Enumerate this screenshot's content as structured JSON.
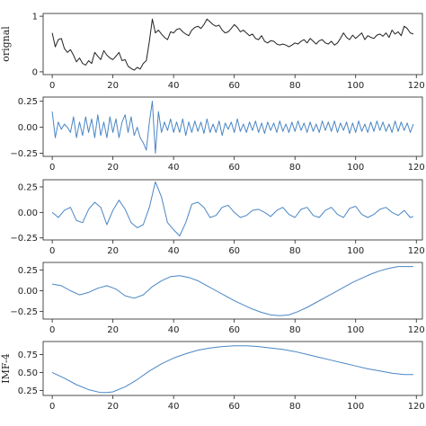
{
  "chart_data": [
    {
      "type": "line",
      "ylabel": "orignal",
      "xlim": [
        -3,
        122
      ],
      "ylim": [
        -0.05,
        1.05
      ],
      "x_ticks": [
        0,
        20,
        40,
        60,
        80,
        100,
        120
      ],
      "y_ticks": [
        0,
        1
      ],
      "color": "#222222",
      "series": [
        {
          "x": [
            0,
            1,
            2,
            3,
            4,
            5,
            6,
            7,
            8,
            9,
            10,
            11,
            12,
            13,
            14,
            15,
            16,
            17,
            18,
            19,
            20,
            21,
            22,
            23,
            24,
            25,
            26,
            27,
            28,
            29,
            30,
            31,
            32,
            33,
            34,
            35,
            36,
            37,
            38,
            39,
            40,
            41,
            42,
            43,
            44,
            45,
            46,
            47,
            48,
            49,
            50,
            51,
            52,
            53,
            54,
            55,
            56,
            57,
            58,
            59,
            60,
            61,
            62,
            63,
            64,
            65,
            66,
            67,
            68,
            69,
            70,
            71,
            72,
            73,
            74,
            75,
            76,
            77,
            78,
            79,
            80,
            81,
            82,
            83,
            84,
            85,
            86,
            87,
            88,
            89,
            90,
            91,
            92,
            93,
            94,
            95,
            96,
            97,
            98,
            99,
            100,
            101,
            102,
            103,
            104,
            105,
            106,
            107,
            108,
            109,
            110,
            111,
            112,
            113,
            114,
            115,
            116,
            117,
            118,
            119
          ],
          "y": [
            0.7,
            0.45,
            0.58,
            0.6,
            0.42,
            0.35,
            0.4,
            0.3,
            0.18,
            0.25,
            0.15,
            0.12,
            0.2,
            0.15,
            0.35,
            0.28,
            0.22,
            0.38,
            0.3,
            0.25,
            0.22,
            0.28,
            0.35,
            0.2,
            0.22,
            0.1,
            0.06,
            0.03,
            0.08,
            0.05,
            0.15,
            0.2,
            0.55,
            0.95,
            0.7,
            0.75,
            0.68,
            0.62,
            0.58,
            0.72,
            0.7,
            0.76,
            0.78,
            0.72,
            0.68,
            0.65,
            0.75,
            0.8,
            0.82,
            0.78,
            0.85,
            0.95,
            0.9,
            0.85,
            0.82,
            0.84,
            0.75,
            0.7,
            0.72,
            0.78,
            0.85,
            0.8,
            0.72,
            0.75,
            0.7,
            0.65,
            0.68,
            0.6,
            0.58,
            0.65,
            0.55,
            0.52,
            0.56,
            0.55,
            0.5,
            0.48,
            0.5,
            0.48,
            0.45,
            0.48,
            0.52,
            0.5,
            0.55,
            0.58,
            0.52,
            0.6,
            0.55,
            0.5,
            0.56,
            0.58,
            0.52,
            0.5,
            0.55,
            0.48,
            0.52,
            0.6,
            0.7,
            0.62,
            0.58,
            0.66,
            0.6,
            0.65,
            0.7,
            0.58,
            0.65,
            0.62,
            0.6,
            0.66,
            0.68,
            0.64,
            0.7,
            0.62,
            0.75,
            0.68,
            0.72,
            0.65,
            0.82,
            0.78,
            0.7,
            0.68
          ]
        }
      ]
    },
    {
      "type": "line",
      "ylabel": "",
      "xlim": [
        -3,
        122
      ],
      "ylim": [
        -0.28,
        0.29
      ],
      "x_ticks": [
        0,
        20,
        40,
        60,
        80,
        100,
        120
      ],
      "y_ticks": [
        0.25,
        0.0,
        -0.25
      ],
      "y_tick_labels": [
        "0.25",
        "0.00",
        "−0.25"
      ],
      "color": "#4a86c4",
      "series": [
        {
          "x": [
            0,
            1,
            2,
            3,
            4,
            5,
            6,
            7,
            8,
            9,
            10,
            11,
            12,
            13,
            14,
            15,
            16,
            17,
            18,
            19,
            20,
            21,
            22,
            23,
            24,
            25,
            26,
            27,
            28,
            29,
            30,
            31,
            32,
            33,
            34,
            35,
            36,
            37,
            38,
            39,
            40,
            41,
            42,
            43,
            44,
            45,
            46,
            47,
            48,
            49,
            50,
            51,
            52,
            53,
            54,
            55,
            56,
            57,
            58,
            59,
            60,
            61,
            62,
            63,
            64,
            65,
            66,
            67,
            68,
            69,
            70,
            71,
            72,
            73,
            74,
            75,
            76,
            77,
            78,
            79,
            80,
            81,
            82,
            83,
            84,
            85,
            86,
            87,
            88,
            89,
            90,
            91,
            92,
            93,
            94,
            95,
            96,
            97,
            98,
            99,
            100,
            101,
            102,
            103,
            104,
            105,
            106,
            107,
            108,
            109,
            110,
            111,
            112,
            113,
            114,
            115,
            116,
            117,
            118,
            119
          ],
          "y": [
            0.15,
            -0.1,
            0.05,
            -0.02,
            0.03,
            0.0,
            -0.05,
            0.1,
            -0.1,
            0.05,
            -0.08,
            0.1,
            -0.05,
            0.08,
            -0.1,
            0.12,
            -0.08,
            0.05,
            -0.1,
            0.1,
            -0.05,
            0.08,
            -0.1,
            0.05,
            0.12,
            -0.05,
            0.1,
            -0.08,
            0.0,
            -0.1,
            -0.15,
            -0.22,
            0.05,
            0.25,
            -0.25,
            0.15,
            -0.05,
            0.05,
            -0.03,
            0.08,
            -0.05,
            0.05,
            -0.05,
            0.08,
            -0.08,
            0.05,
            -0.05,
            0.06,
            -0.04,
            0.05,
            -0.06,
            0.08,
            -0.05,
            0.03,
            -0.05,
            0.06,
            -0.08,
            0.04,
            -0.02,
            0.05,
            -0.05,
            0.08,
            -0.04,
            0.03,
            -0.05,
            0.05,
            -0.03,
            0.06,
            -0.05,
            0.04,
            -0.06,
            0.05,
            -0.03,
            0.04,
            -0.05,
            0.06,
            -0.04,
            0.03,
            -0.05,
            0.05,
            -0.04,
            0.06,
            -0.03,
            0.04,
            -0.05,
            0.05,
            -0.04,
            0.03,
            -0.05,
            0.06,
            -0.03,
            0.05,
            -0.04,
            0.06,
            -0.05,
            0.04,
            -0.03,
            0.05,
            -0.06,
            0.04,
            -0.05,
            0.06,
            -0.04,
            0.03,
            -0.05,
            0.05,
            -0.04,
            0.06,
            -0.03,
            0.05,
            -0.04,
            0.03,
            -0.05,
            0.06,
            -0.04,
            0.05,
            -0.03,
            0.04,
            -0.05,
            0.03
          ]
        }
      ]
    },
    {
      "type": "line",
      "ylabel": "",
      "xlim": [
        -3,
        122
      ],
      "ylim": [
        -0.27,
        0.32
      ],
      "x_ticks": [
        0,
        20,
        40,
        60,
        80,
        100,
        120
      ],
      "y_ticks": [
        0.25,
        0.0,
        -0.25
      ],
      "y_tick_labels": [
        "0.25",
        "0.00",
        "−0.25"
      ],
      "color": "#4a86c4",
      "series": [
        {
          "x": [
            0,
            2,
            4,
            6,
            8,
            10,
            12,
            14,
            16,
            18,
            20,
            22,
            24,
            26,
            28,
            30,
            32,
            34,
            36,
            38,
            40,
            42,
            44,
            46,
            48,
            50,
            52,
            54,
            56,
            58,
            60,
            62,
            64,
            66,
            68,
            70,
            72,
            74,
            76,
            78,
            80,
            82,
            84,
            86,
            88,
            90,
            92,
            94,
            96,
            98,
            100,
            102,
            104,
            106,
            108,
            110,
            112,
            114,
            116,
            118,
            119
          ],
          "y": [
            0.0,
            -0.05,
            0.02,
            0.05,
            -0.08,
            -0.1,
            0.03,
            0.1,
            0.05,
            -0.12,
            0.02,
            0.12,
            0.03,
            -0.1,
            -0.15,
            -0.12,
            0.05,
            0.3,
            0.15,
            -0.1,
            -0.17,
            -0.23,
            -0.1,
            0.08,
            0.1,
            0.05,
            -0.05,
            -0.03,
            0.05,
            0.07,
            0.0,
            -0.05,
            -0.03,
            0.02,
            0.03,
            0.0,
            -0.04,
            0.02,
            0.05,
            -0.02,
            -0.05,
            0.03,
            0.05,
            -0.03,
            -0.05,
            0.02,
            0.05,
            -0.02,
            -0.05,
            0.04,
            0.06,
            -0.02,
            -0.05,
            -0.02,
            0.03,
            0.05,
            0.0,
            -0.03,
            0.02,
            -0.05,
            -0.04
          ]
        }
      ]
    },
    {
      "type": "line",
      "ylabel": "",
      "xlim": [
        -3,
        122
      ],
      "ylim": [
        -0.34,
        0.34
      ],
      "x_ticks": [
        0,
        20,
        40,
        60,
        80,
        100,
        120
      ],
      "y_ticks": [
        0.25,
        0.0,
        -0.25
      ],
      "y_tick_labels": [
        "0.25",
        "0.00",
        "−0.25"
      ],
      "color": "#4a86c4",
      "series": [
        {
          "x": [
            0,
            3,
            6,
            9,
            12,
            15,
            18,
            21,
            24,
            27,
            30,
            33,
            36,
            39,
            42,
            45,
            48,
            51,
            54,
            57,
            60,
            63,
            66,
            69,
            72,
            75,
            78,
            81,
            84,
            87,
            90,
            93,
            96,
            99,
            102,
            105,
            108,
            111,
            114,
            117,
            119
          ],
          "y": [
            0.08,
            0.06,
            0.0,
            -0.05,
            -0.02,
            0.03,
            0.06,
            0.02,
            -0.06,
            -0.09,
            -0.05,
            0.05,
            0.12,
            0.17,
            0.18,
            0.16,
            0.12,
            0.06,
            0.0,
            -0.06,
            -0.12,
            -0.17,
            -0.22,
            -0.26,
            -0.29,
            -0.3,
            -0.29,
            -0.25,
            -0.2,
            -0.14,
            -0.08,
            -0.02,
            0.04,
            0.1,
            0.15,
            0.2,
            0.24,
            0.27,
            0.29,
            0.29,
            0.29
          ]
        }
      ]
    },
    {
      "type": "line",
      "ylabel": "IMF-4",
      "xlim": [
        -3,
        122
      ],
      "ylim": [
        0.18,
        0.93
      ],
      "x_ticks": [
        0,
        20,
        40,
        60,
        80,
        100,
        120
      ],
      "y_ticks": [
        0.25,
        0.5,
        0.75
      ],
      "y_tick_labels": [
        "0.25",
        "0.50",
        "0.75"
      ],
      "color": "#4a86c4",
      "series": [
        {
          "x": [
            0,
            4,
            8,
            12,
            16,
            18,
            20,
            24,
            28,
            32,
            36,
            40,
            44,
            48,
            52,
            56,
            60,
            64,
            68,
            72,
            76,
            80,
            84,
            88,
            92,
            96,
            100,
            104,
            108,
            112,
            116,
            119
          ],
          "y": [
            0.5,
            0.42,
            0.33,
            0.26,
            0.22,
            0.22,
            0.23,
            0.3,
            0.4,
            0.52,
            0.62,
            0.7,
            0.76,
            0.81,
            0.84,
            0.86,
            0.87,
            0.87,
            0.86,
            0.84,
            0.82,
            0.79,
            0.75,
            0.71,
            0.67,
            0.63,
            0.59,
            0.55,
            0.52,
            0.49,
            0.47,
            0.47
          ]
        }
      ]
    }
  ]
}
